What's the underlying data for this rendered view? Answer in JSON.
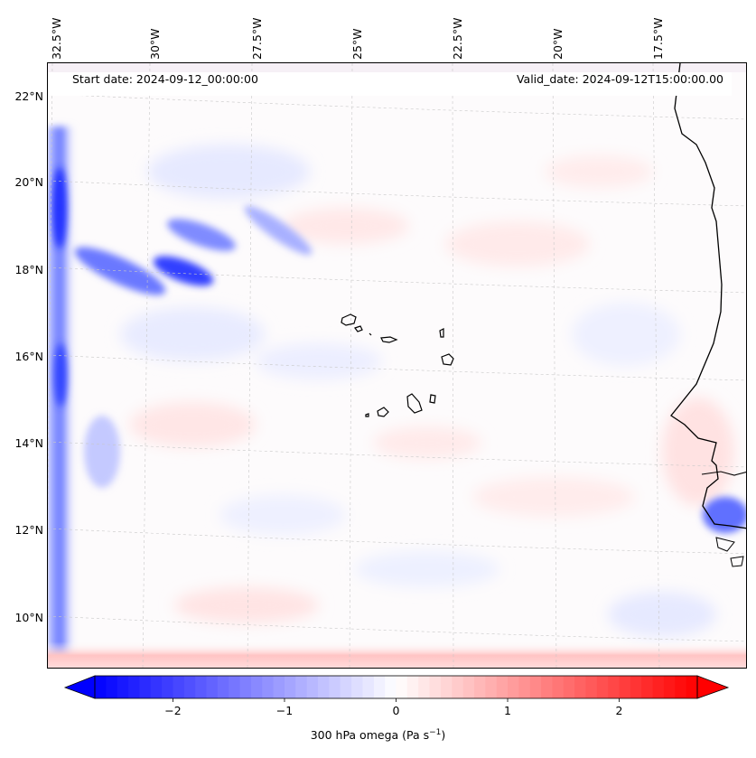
{
  "map": {
    "start_date": "Start date: 2024-09-12_00:00:00",
    "valid_date": "Valid_date: 2024-09-12T15:00:00.00",
    "longitude_labels": [
      "32.5°W",
      "30°W",
      "27.5°W",
      "25°W",
      "22.5°W",
      "20°W",
      "17.5°W"
    ],
    "latitude_labels": [
      "22°N",
      "20°N",
      "18°N",
      "16°N",
      "14°N",
      "12°N",
      "10°N"
    ],
    "field": "300 hPa omega",
    "islands": "Cape Verde",
    "coastline": "West Africa (Senegal / Gambia / Guinea-Bissau)"
  },
  "colorbar": {
    "label": "300 hPa omega (Pa s",
    "label_exp": "−1",
    "label_close": ")",
    "ticks": [
      "−2",
      "−1",
      "0",
      "1",
      "2"
    ],
    "tick_values": [
      -2,
      -1,
      0,
      1,
      2
    ],
    "range": [
      -2.7,
      2.7
    ],
    "levels": 54,
    "colors": {
      "negative": "#0000ff",
      "zero": "#ffffff",
      "positive": "#ff0000"
    }
  }
}
